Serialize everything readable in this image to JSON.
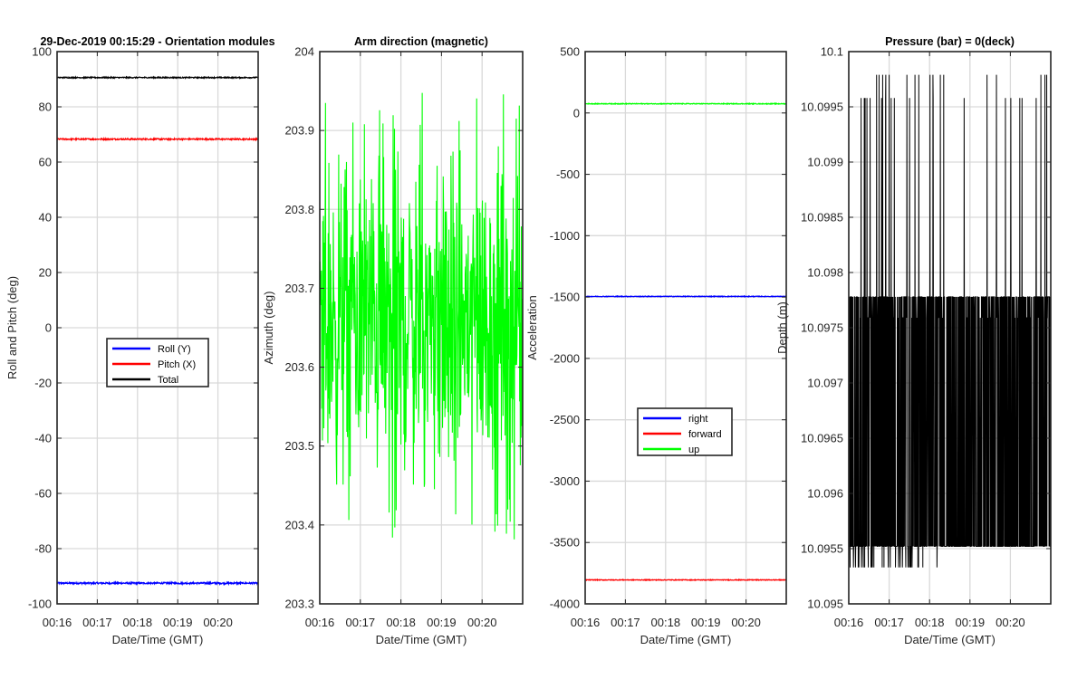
{
  "window_title": "29-Dec-2019 00:15:29 - Orientation modules",
  "chart_data": [
    {
      "type": "line",
      "title": "29-Dec-2019 00:15:29 - Orientation modules",
      "xlabel": "Date/Time (GMT)",
      "ylabel": "Roll and Pitch (deg)",
      "xlim": [
        "00:16",
        "00:21"
      ],
      "xticks": [
        "00:16",
        "00:17",
        "00:18",
        "00:19",
        "00:20"
      ],
      "ylim": [
        -100,
        100
      ],
      "yticks": [
        "-100",
        "-80",
        "-60",
        "-40",
        "-20",
        "0",
        "20",
        "40",
        "60",
        "80",
        "100"
      ],
      "grid": true,
      "legend_position": "center-left",
      "series": [
        {
          "name": "Roll (Y)",
          "color": "#0000ff",
          "mean": -92.5,
          "noise": 0.3
        },
        {
          "name": "Pitch (X)",
          "color": "#ff0000",
          "mean": 68.3,
          "noise": 0.25
        },
        {
          "name": "Total",
          "color": "#000000",
          "mean": 90.6,
          "noise": 0.2
        }
      ]
    },
    {
      "type": "line",
      "title": "Arm direction (magnetic)",
      "xlabel": "Date/Time (GMT)",
      "ylabel": "Azimuth (deg)",
      "xlim": [
        "00:16",
        "00:21"
      ],
      "xticks": [
        "00:16",
        "00:17",
        "00:18",
        "00:19",
        "00:20"
      ],
      "ylim": [
        203.3,
        204
      ],
      "yticks": [
        "203.3",
        "203.4",
        "203.5",
        "203.6",
        "203.7",
        "203.8",
        "203.9",
        "204"
      ],
      "grid": true,
      "series": [
        {
          "name": "",
          "color": "#00ff00",
          "mean": 203.67,
          "range": [
            203.37,
            203.95
          ]
        }
      ]
    },
    {
      "type": "line",
      "title": "",
      "xlabel": "Date/Time (GMT)",
      "ylabel": "Acceleration",
      "xlim": [
        "00:16",
        "00:21"
      ],
      "xticks": [
        "00:16",
        "00:17",
        "00:18",
        "00:19",
        "00:20"
      ],
      "ylim": [
        -4000,
        500
      ],
      "yticks": [
        "-4000",
        "-3500",
        "-3000",
        "-2500",
        "-2000",
        "-1500",
        "-1000",
        "-500",
        "0",
        "500"
      ],
      "grid": true,
      "legend_position": "lower-center",
      "series": [
        {
          "name": "right",
          "color": "#0000ff",
          "mean": -1495,
          "noise": 3
        },
        {
          "name": "forward",
          "color": "#ff0000",
          "mean": -3805,
          "noise": 3
        },
        {
          "name": "up",
          "color": "#00ff00",
          "mean": 75,
          "noise": 3
        }
      ]
    },
    {
      "type": "line",
      "title": "Pressure (bar) = 0(deck)",
      "xlabel": "Date/Time (GMT)",
      "ylabel": "Depth (m)",
      "xlim": [
        "00:16",
        "00:21"
      ],
      "xticks": [
        "00:16",
        "00:17",
        "00:18",
        "00:19",
        "00:20"
      ],
      "ylim": [
        10.095,
        10.1
      ],
      "yticks": [
        "10.095",
        "10.0955",
        "10.096",
        "10.0965",
        "10.097",
        "10.0975",
        "10.098",
        "10.0985",
        "10.099",
        "10.0995",
        "10.1"
      ],
      "grid": true,
      "series": [
        {
          "name": "",
          "color": "#000000",
          "levels": [
            10.09533,
            10.09552,
            10.09759,
            10.09778,
            10.09958,
            10.09979
          ]
        }
      ]
    }
  ]
}
